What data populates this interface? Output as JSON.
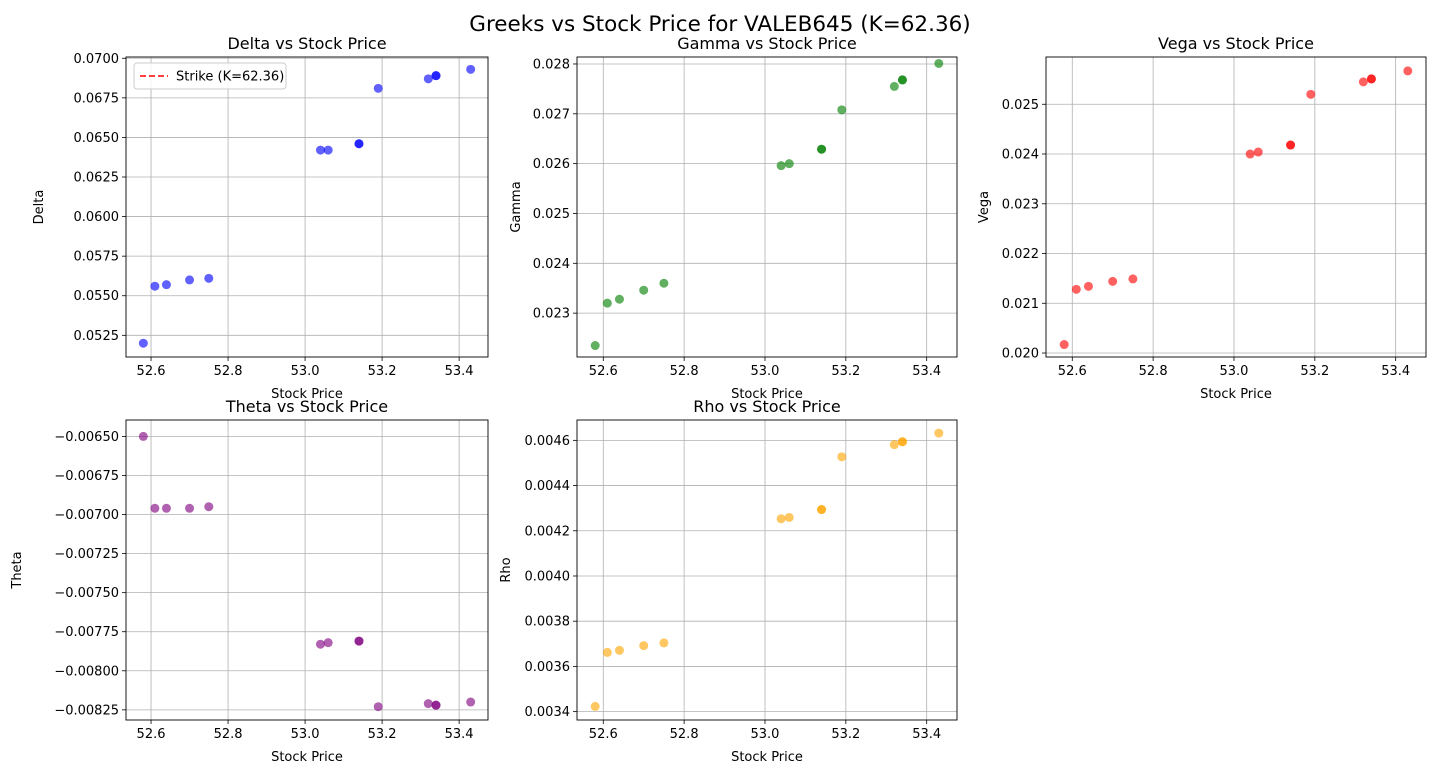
{
  "figure": {
    "title": "Greeks vs Stock Price for VALEB645 (K=62.36)"
  },
  "chart_data": [
    {
      "type": "scatter",
      "title": "Delta vs Stock Price",
      "xlabel": "Stock Price",
      "ylabel": "Delta",
      "color": "#0000ff",
      "xlim": [
        52.535,
        53.475
      ],
      "ylim": [
        0.05113,
        0.07008
      ],
      "xticks": [
        52.6,
        52.8,
        53.0,
        53.2,
        53.4
      ],
      "xtick_labels": [
        "52.6",
        "52.8",
        "53.0",
        "53.2",
        "53.4"
      ],
      "yticks": [
        0.0525,
        0.055,
        0.0575,
        0.06,
        0.0625,
        0.065,
        0.0675,
        0.07
      ],
      "ytick_labels": [
        "0.0525",
        "0.0550",
        "0.0575",
        "0.0600",
        "0.0625",
        "0.0650",
        "0.0675",
        "0.0700"
      ],
      "grid": true,
      "legend": {
        "placement": "top-left",
        "entries": [
          {
            "label": "Strike (K=62.36)",
            "color": "#ff0000",
            "style": "dashed"
          }
        ]
      },
      "x": [
        52.58,
        52.61,
        52.64,
        52.7,
        52.75,
        53.04,
        53.06,
        53.14,
        53.14,
        53.19,
        53.32,
        53.34,
        53.34,
        53.43
      ],
      "y": [
        0.052,
        0.0556,
        0.0557,
        0.056,
        0.0561,
        0.0642,
        0.0642,
        0.0646,
        0.0646,
        0.0681,
        0.0687,
        0.0689,
        0.0689,
        0.0693
      ]
    },
    {
      "type": "scatter",
      "title": "Gamma vs Stock Price",
      "xlabel": "Stock Price",
      "ylabel": "Gamma",
      "color": "#008000",
      "xlim": [
        52.535,
        53.475
      ],
      "ylim": [
        0.02212,
        0.02814
      ],
      "xticks": [
        52.6,
        52.8,
        53.0,
        53.2,
        53.4
      ],
      "xtick_labels": [
        "52.6",
        "52.8",
        "53.0",
        "53.2",
        "53.4"
      ],
      "yticks": [
        0.023,
        0.024,
        0.025,
        0.026,
        0.027,
        0.028
      ],
      "ytick_labels": [
        "0.023",
        "0.024",
        "0.025",
        "0.026",
        "0.027",
        "0.028"
      ],
      "grid": true,
      "x": [
        52.58,
        52.61,
        52.64,
        52.7,
        52.75,
        53.04,
        53.06,
        53.14,
        53.14,
        53.19,
        53.32,
        53.34,
        53.34,
        53.43
      ],
      "y": [
        0.02235,
        0.0232,
        0.02328,
        0.02346,
        0.0236,
        0.02596,
        0.026,
        0.02629,
        0.02629,
        0.02708,
        0.02755,
        0.02768,
        0.02768,
        0.02801
      ]
    },
    {
      "type": "scatter",
      "title": "Vega vs Stock Price",
      "xlabel": "Stock Price",
      "ylabel": "Vega",
      "color": "#ff0000",
      "xlim": [
        52.535,
        53.475
      ],
      "ylim": [
        0.01992,
        0.02595
      ],
      "xticks": [
        52.6,
        52.8,
        53.0,
        53.2,
        53.4
      ],
      "xtick_labels": [
        "52.6",
        "52.8",
        "53.0",
        "53.2",
        "53.4"
      ],
      "yticks": [
        0.02,
        0.021,
        0.022,
        0.023,
        0.024,
        0.025
      ],
      "ytick_labels": [
        "0.020",
        "0.021",
        "0.022",
        "0.023",
        "0.024",
        "0.025"
      ],
      "grid": true,
      "x": [
        52.58,
        52.61,
        52.64,
        52.7,
        52.75,
        53.04,
        53.06,
        53.14,
        53.14,
        53.19,
        53.32,
        53.34,
        53.34,
        53.43
      ],
      "y": [
        0.02017,
        0.02128,
        0.02134,
        0.02144,
        0.02149,
        0.024,
        0.02404,
        0.02418,
        0.02418,
        0.0252,
        0.02545,
        0.02551,
        0.02551,
        0.02567
      ]
    },
    {
      "type": "scatter",
      "title": "Theta vs Stock Price",
      "xlabel": "Stock Price",
      "ylabel": "Theta",
      "color": "#800080",
      "xlim": [
        52.535,
        53.475
      ],
      "ylim": [
        -0.008315,
        -0.006395
      ],
      "xticks": [
        52.6,
        52.8,
        53.0,
        53.2,
        53.4
      ],
      "xtick_labels": [
        "52.6",
        "52.8",
        "53.0",
        "53.2",
        "53.4"
      ],
      "yticks": [
        -0.0065,
        -0.00675,
        -0.007,
        -0.00725,
        -0.0075,
        -0.00775,
        -0.008,
        -0.00825
      ],
      "ytick_labels": [
        "−0.00650",
        "−0.00675",
        "−0.00700",
        "−0.00725",
        "−0.00750",
        "−0.00775",
        "−0.00800",
        "−0.00825"
      ],
      "grid": true,
      "x": [
        52.58,
        52.61,
        52.64,
        52.7,
        52.75,
        53.04,
        53.06,
        53.14,
        53.14,
        53.19,
        53.32,
        53.34,
        53.34,
        53.43
      ],
      "y": [
        -0.0065,
        -0.00696,
        -0.00696,
        -0.00696,
        -0.00695,
        -0.00783,
        -0.00782,
        -0.00781,
        -0.00781,
        -0.00823,
        -0.00821,
        -0.00822,
        -0.00822,
        -0.0082
      ]
    },
    {
      "type": "scatter",
      "title": "Rho vs Stock Price",
      "xlabel": "Stock Price",
      "ylabel": "Rho",
      "color": "#ffa500",
      "xlim": [
        52.535,
        53.475
      ],
      "ylim": [
        0.003363,
        0.00469
      ],
      "xticks": [
        52.6,
        52.8,
        53.0,
        53.2,
        53.4
      ],
      "xtick_labels": [
        "52.6",
        "52.8",
        "53.0",
        "53.2",
        "53.4"
      ],
      "yticks": [
        0.0034,
        0.0036,
        0.0038,
        0.004,
        0.0042,
        0.0044,
        0.0046
      ],
      "ytick_labels": [
        "0.0034",
        "0.0036",
        "0.0038",
        "0.0040",
        "0.0042",
        "0.0044",
        "0.0046"
      ],
      "grid": true,
      "x": [
        52.58,
        52.61,
        52.64,
        52.7,
        52.75,
        53.04,
        53.06,
        53.14,
        53.14,
        53.19,
        53.32,
        53.34,
        53.34,
        53.43
      ],
      "y": [
        0.003423,
        0.003662,
        0.003671,
        0.003692,
        0.003704,
        0.004253,
        0.004259,
        0.004294,
        0.004294,
        0.004527,
        0.004581,
        0.004594,
        0.004594,
        0.004632
      ]
    }
  ]
}
